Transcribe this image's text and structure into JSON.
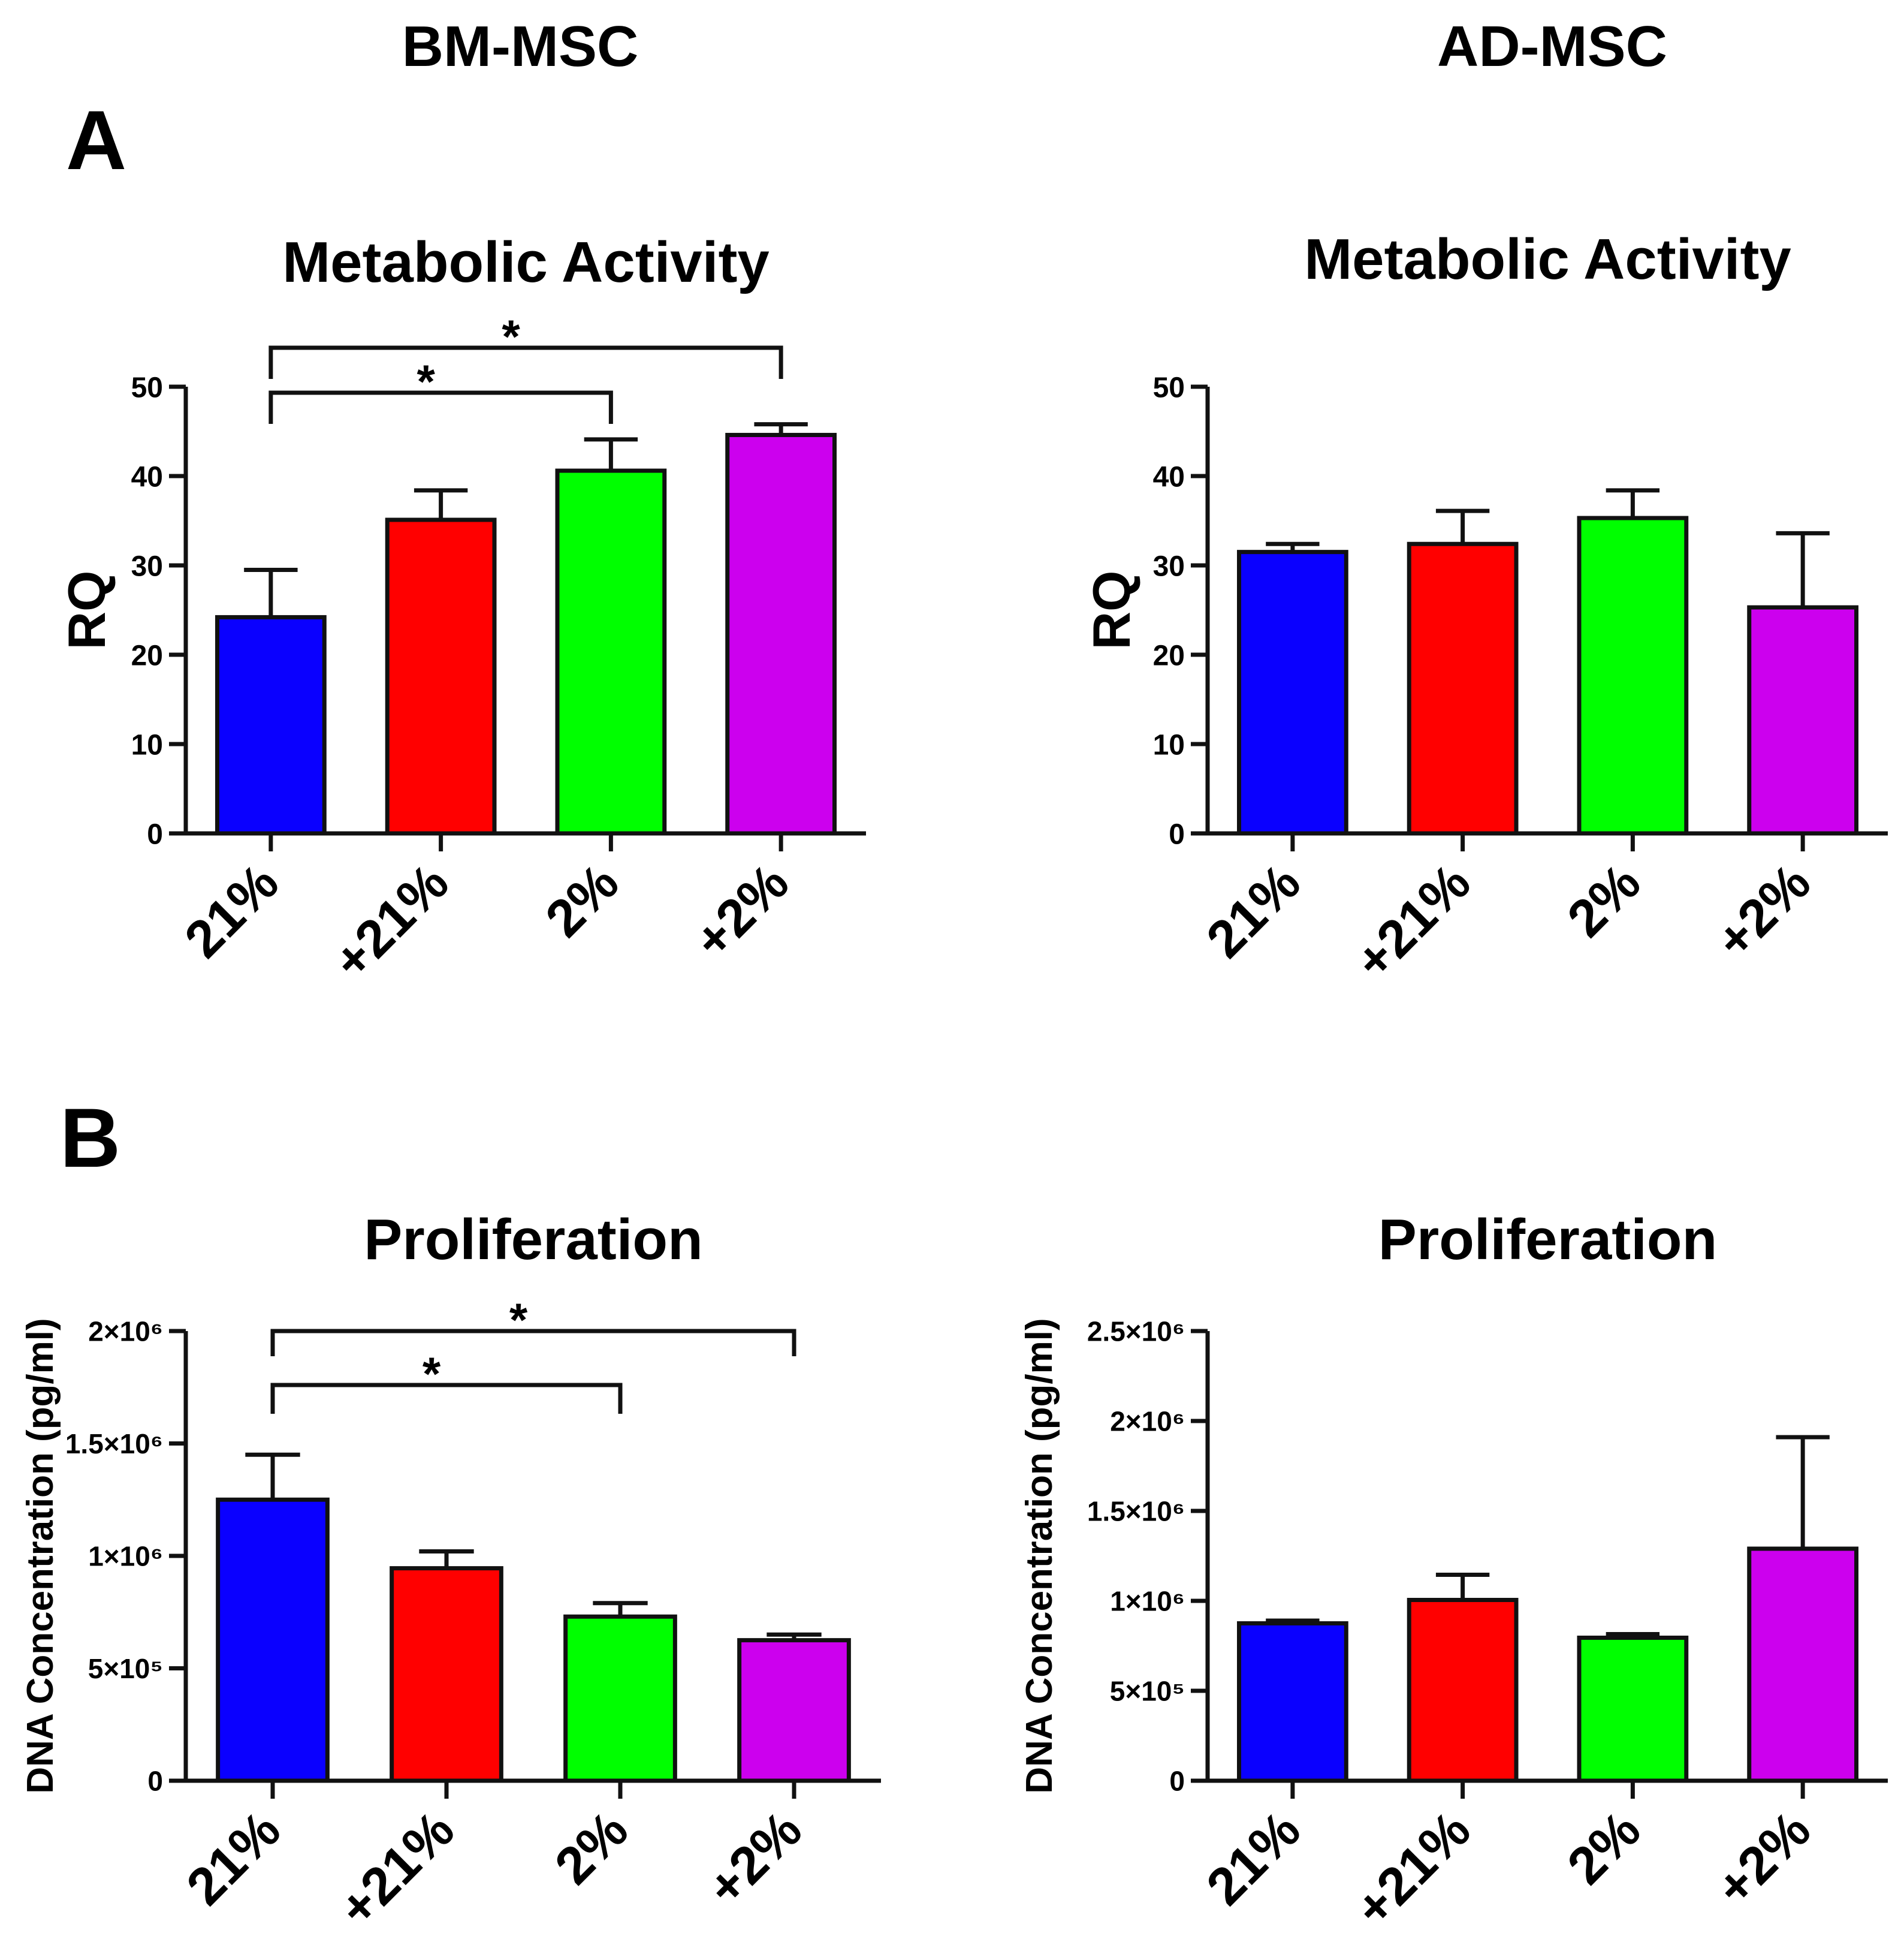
{
  "columns": [
    "BM-MSC",
    "AD-MSC"
  ],
  "panel_labels": [
    "A",
    "B"
  ],
  "colors": {
    "21%": "#0a00ff",
    "+21%": "#ff0000",
    "2%": "#00ff00",
    "+2%": "#cc00ee"
  },
  "chart_data": [
    {
      "id": "bm-metabolic",
      "type": "bar",
      "title": "Metabolic Activity",
      "group": "BM-MSC",
      "categories": [
        "21%",
        "+21%",
        "2%",
        "+2%"
      ],
      "values": [
        24.2,
        35.1,
        40.6,
        44.6
      ],
      "errors": [
        5.3,
        3.3,
        3.5,
        1.2
      ],
      "ylabel": "RQ",
      "xlabel": "",
      "ylim": [
        0,
        50
      ],
      "yticks": [
        0,
        10,
        20,
        30,
        40,
        50
      ],
      "ytick_labels": [
        "0",
        "10",
        "20",
        "30",
        "40",
        "50"
      ],
      "significance": [
        {
          "from": "21%",
          "to": "2%",
          "label": "*"
        },
        {
          "from": "21%",
          "to": "+2%",
          "label": "*"
        }
      ]
    },
    {
      "id": "ad-metabolic",
      "type": "bar",
      "title": "Metabolic Activity",
      "group": "AD-MSC",
      "categories": [
        "21%",
        "+21%",
        "2%",
        "+2%"
      ],
      "values": [
        31.5,
        32.4,
        35.3,
        25.3
      ],
      "errors": [
        0.9,
        3.7,
        3.1,
        8.3
      ],
      "ylabel": "RQ",
      "xlabel": "",
      "ylim": [
        0,
        50
      ],
      "yticks": [
        0,
        10,
        20,
        30,
        40,
        50
      ],
      "ytick_labels": [
        "0",
        "10",
        "20",
        "30",
        "40",
        "50"
      ],
      "significance": []
    },
    {
      "id": "bm-proliferation",
      "type": "bar",
      "title": "Proliferation",
      "group": "BM-MSC",
      "categories": [
        "21%",
        "+21%",
        "2%",
        "+2%"
      ],
      "values": [
        1250000,
        945000,
        730000,
        625000
      ],
      "errors": [
        200000,
        75000,
        60000,
        25000
      ],
      "ylabel": "DNA Concentration (pg/ml)",
      "xlabel": "",
      "ylim": [
        0,
        2000000
      ],
      "yticks": [
        0,
        500000,
        1000000,
        1500000,
        2000000
      ],
      "ytick_labels": [
        "0",
        "5×10⁵",
        "1×10⁶",
        "1.5×10⁶",
        "2×10⁶"
      ],
      "significance": [
        {
          "from": "21%",
          "to": "2%",
          "label": "*"
        },
        {
          "from": "21%",
          "to": "+2%",
          "label": "*"
        }
      ]
    },
    {
      "id": "ad-proliferation",
      "type": "bar",
      "title": "Proliferation",
      "group": "AD-MSC",
      "categories": [
        "21%",
        "+21%",
        "2%",
        "+2%"
      ],
      "values": [
        875000,
        1005000,
        795000,
        1290000
      ],
      "errors": [
        15000,
        140000,
        20000,
        620000
      ],
      "ylabel": "DNA Concentration (pg/ml)",
      "xlabel": "",
      "ylim": [
        0,
        2500000
      ],
      "yticks": [
        0,
        500000,
        1000000,
        1500000,
        2000000,
        2500000
      ],
      "ytick_labels": [
        "0",
        "5×10⁵",
        "1×10⁶",
        "1.5×10⁶",
        "2×10⁶",
        "2.5×10⁶"
      ],
      "significance": []
    }
  ]
}
